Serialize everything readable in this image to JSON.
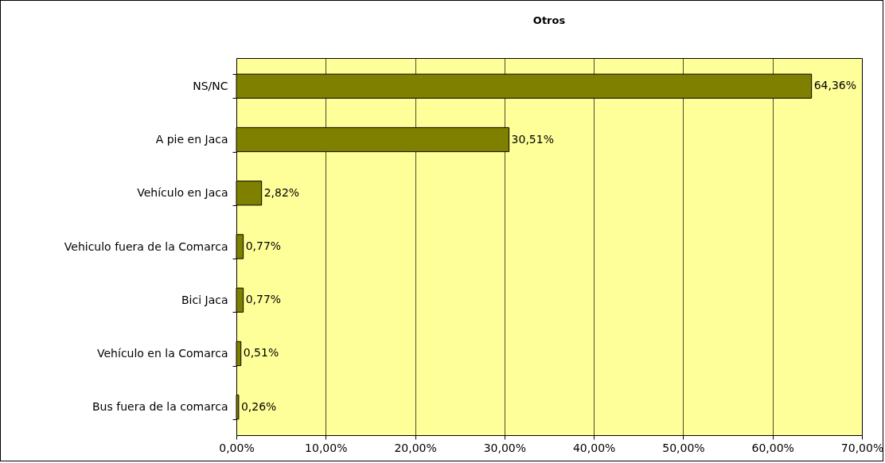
{
  "chart_data": {
    "type": "bar",
    "orientation": "horizontal",
    "title": "Otros",
    "categories": [
      "NS/NC",
      "A pie en Jaca",
      "Vehículo en Jaca",
      "Vehiculo fuera de la Comarca",
      "Bici Jaca",
      "Vehículo en la Comarca",
      "Bus fuera de la comarca"
    ],
    "values": [
      64.36,
      30.51,
      2.82,
      0.77,
      0.77,
      0.51,
      0.26
    ],
    "value_labels": [
      "64,36%",
      "30,51%",
      "2,82%",
      "0,77%",
      "0,77%",
      "0,51%",
      "0,26%"
    ],
    "color": "#808000",
    "xlim": [
      0,
      70
    ],
    "xticks": [
      {
        "value": 0,
        "label": "0,00%"
      },
      {
        "value": 10,
        "label": "10,00%"
      },
      {
        "value": 20,
        "label": "20,00%"
      },
      {
        "value": 30,
        "label": "30,00%"
      },
      {
        "value": 40,
        "label": "40,00%"
      },
      {
        "value": 50,
        "label": "50,00%"
      },
      {
        "value": 60,
        "label": "60,00%"
      },
      {
        "value": 70,
        "label": "70,00%"
      }
    ],
    "grid": "x"
  }
}
